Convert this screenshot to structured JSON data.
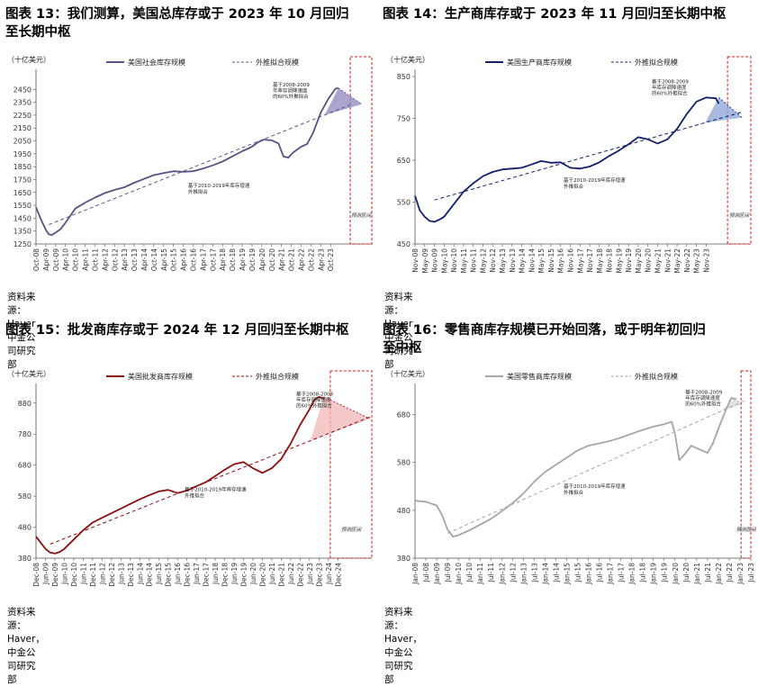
{
  "source": "资料来源：Haver，中金公司研究部",
  "charts": [
    {
      "title_line1": "图表 13：我们测算，美国总库存或于 2023 年 10 月回归",
      "title_line2": "至长期中枢",
      "unit": "（十亿美元）",
      "legend_actual": "美国社会库存规模",
      "legend_trend": "外推拟合规模",
      "note_a": [
        "基于2008-2009",
        "年库存调降速度",
        "的60%外推拟合"
      ],
      "note_b": [
        "基于2010-2019年库存增速",
        "外推拟合"
      ],
      "forecast_label": "预测区间",
      "color": "#5c5185",
      "fill": "#8d87bf",
      "chart_data": {
        "type": "line",
        "ylim": [
          1250,
          2550
        ],
        "yticks": [
          1250,
          1350,
          1450,
          1550,
          1650,
          1750,
          1850,
          1950,
          2050,
          2150,
          2250,
          2350,
          2450
        ],
        "xlabels": [
          "Oct-08",
          "Apr-09",
          "Oct-09",
          "Apr-10",
          "Oct-10",
          "Apr-11",
          "Oct-11",
          "Apr-12",
          "Oct-12",
          "Apr-13",
          "Oct-13",
          "Apr-14",
          "Oct-14",
          "Apr-15",
          "Oct-15",
          "Apr-16",
          "Oct-16",
          "Apr-17",
          "Oct-17",
          "Apr-18",
          "Oct-18",
          "Apr-19",
          "Oct-19",
          "Apr-20",
          "Oct-20",
          "Apr-21",
          "Oct-21",
          "Apr-22",
          "Oct-22",
          "Apr-23",
          "Oct-23"
        ],
        "actual": [
          [
            0,
            1535
          ],
          [
            0.5,
            1440
          ],
          [
            1,
            1360
          ],
          [
            1.3,
            1325
          ],
          [
            1.6,
            1320
          ],
          [
            2,
            1338
          ],
          [
            2.5,
            1365
          ],
          [
            3,
            1415
          ],
          [
            3.5,
            1470
          ],
          [
            4,
            1525
          ],
          [
            5,
            1570
          ],
          [
            6,
            1610
          ],
          [
            7,
            1645
          ],
          [
            8,
            1670
          ],
          [
            9,
            1690
          ],
          [
            10,
            1725
          ],
          [
            11,
            1755
          ],
          [
            12,
            1785
          ],
          [
            13,
            1800
          ],
          [
            14,
            1815
          ],
          [
            15,
            1810
          ],
          [
            16,
            1815
          ],
          [
            17,
            1835
          ],
          [
            18,
            1860
          ],
          [
            19,
            1890
          ],
          [
            20,
            1930
          ],
          [
            21,
            1970
          ],
          [
            22,
            2005
          ],
          [
            22.6,
            2040
          ],
          [
            23.2,
            2060
          ],
          [
            24,
            2055
          ],
          [
            24.7,
            2030
          ],
          [
            25.2,
            1930
          ],
          [
            25.7,
            1920
          ],
          [
            26.2,
            1960
          ],
          [
            27,
            2005
          ],
          [
            27.6,
            2025
          ],
          [
            28.2,
            2110
          ],
          [
            29,
            2270
          ],
          [
            29.8,
            2380
          ],
          [
            30.5,
            2455
          ],
          [
            30.8,
            2460
          ]
        ],
        "trend": [
          [
            1.3,
            1400
          ],
          [
            32,
            2330
          ]
        ],
        "projection": [
          [
            30.8,
            2460
          ],
          [
            33.2,
            2335
          ]
        ],
        "forecast_x": [
          32,
          34.2
        ]
      }
    },
    {
      "title_line1": "图表 14：生产商库存或于 2023 年 11 月回归至长期中枢",
      "unit": "（十亿美元）",
      "legend_actual": "美国生产商库存规模",
      "legend_trend": "外推拟合规模",
      "note_a": [
        "基于2008-2009",
        "年库存调降速度",
        "的60%外推拟合"
      ],
      "note_b": [
        "基于2010-2019年库存增速",
        "外推拟合"
      ],
      "forecast_label": "预测区间",
      "color": "#12206e",
      "fill": "#8aa4d6",
      "chart_data": {
        "type": "line",
        "ylim": [
          450,
          850
        ],
        "yticks": [
          450,
          550,
          650,
          750,
          850
        ],
        "xlabels": [
          "Nov-08",
          "May-09",
          "Nov-09",
          "May-10",
          "Nov-10",
          "May-11",
          "Nov-11",
          "May-12",
          "Nov-12",
          "May-13",
          "Nov-13",
          "May-14",
          "Nov-14",
          "May-15",
          "Nov-15",
          "May-16",
          "Nov-16",
          "May-17",
          "Nov-17",
          "May-18",
          "Nov-18",
          "May-19",
          "Nov-19",
          "May-20",
          "Nov-20",
          "May-21",
          "Nov-21",
          "May-22",
          "Nov-22",
          "May-23",
          "Nov-23"
        ],
        "actual": [
          [
            0,
            565
          ],
          [
            0.5,
            530
          ],
          [
            1,
            515
          ],
          [
            1.5,
            505
          ],
          [
            2,
            503
          ],
          [
            2.5,
            508
          ],
          [
            3,
            515
          ],
          [
            4,
            545
          ],
          [
            5,
            575
          ],
          [
            6,
            595
          ],
          [
            7,
            612
          ],
          [
            8,
            622
          ],
          [
            9,
            628
          ],
          [
            10,
            630
          ],
          [
            11,
            632
          ],
          [
            12,
            640
          ],
          [
            13,
            648
          ],
          [
            14,
            644
          ],
          [
            15,
            645
          ],
          [
            16,
            632
          ],
          [
            17,
            630
          ],
          [
            18,
            635
          ],
          [
            19,
            645
          ],
          [
            20,
            660
          ],
          [
            21,
            673
          ],
          [
            22,
            688
          ],
          [
            23,
            705
          ],
          [
            24,
            700
          ],
          [
            25,
            690
          ],
          [
            26,
            700
          ],
          [
            27,
            725
          ],
          [
            28,
            760
          ],
          [
            29,
            790
          ],
          [
            30,
            800
          ],
          [
            31,
            798
          ],
          [
            31.3,
            785
          ]
        ],
        "trend": [
          [
            2,
            555
          ],
          [
            33.7,
            765
          ]
        ],
        "projection": [
          [
            31.3,
            800
          ],
          [
            33.7,
            752
          ]
        ],
        "forecast_x": [
          32.2,
          34.6
        ]
      }
    },
    {
      "title_line1": "图表 15：批发商库存或于 2024 年 12 月回归至长期中枢",
      "unit": "（十亿美元）",
      "legend_actual": "美国批发商库存规模",
      "legend_trend": "外推拟合规模",
      "note_a": [
        "基于2008-2009",
        "年库存调降速度",
        "的60%外推拟合"
      ],
      "note_b": [
        "基于2010-2019年库存增速",
        "外推拟合"
      ],
      "forecast_label": "预测区间",
      "color": "#8c1010",
      "fill": "#f1b7b7",
      "chart_data": {
        "type": "line",
        "ylim": [
          380,
          920
        ],
        "yticks": [
          380,
          480,
          580,
          680,
          780,
          880
        ],
        "xlabels": [
          "Dec-08",
          "Jun-09",
          "Dec-09",
          "Jun-10",
          "Dec-10",
          "Jun-11",
          "Dec-11",
          "Jun-12",
          "Dec-12",
          "Jun-13",
          "Dec-13",
          "Jun-14",
          "Dec-14",
          "Jun-15",
          "Dec-15",
          "Jun-16",
          "Dec-16",
          "Jun-17",
          "Dec-17",
          "Jun-18",
          "Dec-18",
          "Jun-19",
          "Dec-19",
          "Jun-20",
          "Dec-20",
          "Jun-21",
          "Dec-21",
          "Jun-22",
          "Dec-22",
          "Jun-23",
          "Dec-23",
          "Jun-24",
          "Dec-24"
        ],
        "actual": [
          [
            0,
            450
          ],
          [
            0.5,
            430
          ],
          [
            1,
            410
          ],
          [
            1.5,
            398
          ],
          [
            2,
            395
          ],
          [
            2.5,
            400
          ],
          [
            3,
            410
          ],
          [
            4,
            440
          ],
          [
            5,
            470
          ],
          [
            6,
            495
          ],
          [
            7,
            510
          ],
          [
            8,
            525
          ],
          [
            9,
            540
          ],
          [
            10,
            555
          ],
          [
            11,
            570
          ],
          [
            12,
            583
          ],
          [
            13,
            595
          ],
          [
            14,
            600
          ],
          [
            15,
            590
          ],
          [
            16,
            598
          ],
          [
            17,
            612
          ],
          [
            18,
            625
          ],
          [
            19,
            645
          ],
          [
            20,
            665
          ],
          [
            21,
            683
          ],
          [
            22,
            690
          ],
          [
            23,
            670
          ],
          [
            24,
            655
          ],
          [
            25,
            670
          ],
          [
            26,
            700
          ],
          [
            27,
            750
          ],
          [
            28,
            810
          ],
          [
            29,
            860
          ],
          [
            29.5,
            890
          ],
          [
            30,
            900
          ],
          [
            30.5,
            895
          ]
        ],
        "trend": [
          [
            1.5,
            425
          ],
          [
            35.4,
            835
          ]
        ],
        "projection": [
          [
            30.5,
            900
          ],
          [
            35.4,
            830
          ]
        ],
        "forecast_x": [
          31.2,
          35.6
        ]
      }
    },
    {
      "title_line1": "图表 16：零售商库存规模已开始回落，或于明年初回归",
      "title_line2": "至中枢",
      "unit": "（十亿美元）",
      "legend_actual": "美国零售商库存规模",
      "legend_trend": "外推拟合规模",
      "note_a": [
        "基于2008-2009",
        "年库存调降速度",
        "的60%外推拟合"
      ],
      "note_b": [
        "基于2010-2019年库存增速",
        "外推拟合"
      ],
      "forecast_label": "预测区间",
      "color": "#a6a6a6",
      "fill": "#d9d9d9",
      "chart_data": {
        "type": "line",
        "ylim": [
          380,
          730
        ],
        "yticks": [
          380,
          480,
          580,
          680
        ],
        "xlabels": [
          "Jan-08",
          "Jul-08",
          "Jan-09",
          "Jul-09",
          "Jan-10",
          "Jul-10",
          "Jan-11",
          "Jul-11",
          "Jan-12",
          "Jul-12",
          "Jan-13",
          "Jul-13",
          "Jan-14",
          "Jul-14",
          "Jan-15",
          "Jul-15",
          "Jan-16",
          "Jul-16",
          "Jan-17",
          "Jul-17",
          "Jan-18",
          "Jul-18",
          "Jan-19",
          "Jul-19",
          "Jan-20",
          "Jul-20",
          "Jan-21",
          "Jul-21",
          "Jan-22",
          "Jul-22",
          "Jan-23",
          "Jul-23"
        ],
        "actual": [
          [
            0,
            500
          ],
          [
            1,
            498
          ],
          [
            2,
            490
          ],
          [
            2.5,
            470
          ],
          [
            3,
            440
          ],
          [
            3.5,
            425
          ],
          [
            4,
            428
          ],
          [
            5,
            438
          ],
          [
            6,
            450
          ],
          [
            7,
            462
          ],
          [
            8,
            478
          ],
          [
            9,
            495
          ],
          [
            10,
            515
          ],
          [
            11,
            540
          ],
          [
            12,
            560
          ],
          [
            13,
            575
          ],
          [
            14,
            590
          ],
          [
            15,
            605
          ],
          [
            16,
            615
          ],
          [
            17,
            620
          ],
          [
            18,
            625
          ],
          [
            19,
            632
          ],
          [
            20,
            640
          ],
          [
            21,
            648
          ],
          [
            22,
            655
          ],
          [
            23,
            660
          ],
          [
            23.7,
            665
          ],
          [
            24,
            640
          ],
          [
            24.4,
            585
          ],
          [
            25,
            600
          ],
          [
            25.5,
            615
          ],
          [
            26,
            610
          ],
          [
            27,
            600
          ],
          [
            27.5,
            620
          ],
          [
            28,
            650
          ],
          [
            28.7,
            690
          ],
          [
            29.2,
            715
          ],
          [
            29.6,
            712
          ]
        ],
        "trend": [
          [
            3,
            432
          ],
          [
            30.5,
            710
          ]
        ],
        "projection": [
          [
            29.6,
            715
          ],
          [
            30.1,
            700
          ]
        ],
        "forecast_x": [
          30.1,
          31
        ]
      }
    }
  ]
}
